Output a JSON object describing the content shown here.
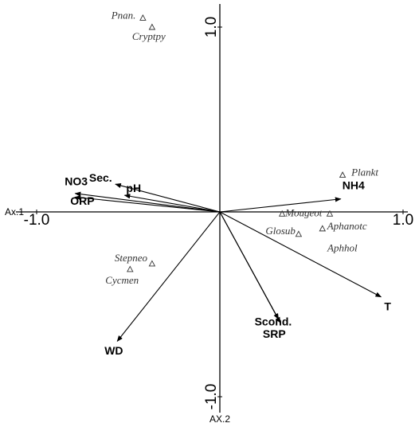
{
  "chart_data": {
    "type": "biplot",
    "x_label": "Ax.1",
    "y_label": "AX.2",
    "xlim": [
      -1.0,
      1.0
    ],
    "ylim": [
      -1.0,
      1.0
    ],
    "xticks": [
      {
        "value": -1.0,
        "label": "-1.0"
      },
      {
        "value": 1.0,
        "label": "1.0"
      }
    ],
    "yticks": [
      {
        "value": 1.0,
        "label": "1.0"
      },
      {
        "value": -1.0,
        "label": "-1.0"
      }
    ],
    "vectors": [
      {
        "name": "NO3",
        "x": -0.79,
        "y": 0.1
      },
      {
        "name": "ORP",
        "x": -0.79,
        "y": 0.08
      },
      {
        "name": "Sec.",
        "x": -0.57,
        "y": 0.15
      },
      {
        "name": "pH",
        "x": -0.52,
        "y": 0.09
      },
      {
        "name": "NH4",
        "x": 0.66,
        "y": 0.07
      },
      {
        "name": "T",
        "x": 0.88,
        "y": -0.46
      },
      {
        "name": "WD",
        "x": -0.56,
        "y": -0.7
      },
      {
        "name": "Scond.",
        "x": 0.32,
        "y": -0.58
      },
      {
        "name": "SRP",
        "x": 0.33,
        "y": -0.6
      }
    ],
    "species": [
      {
        "name": "Pnan.",
        "x": -0.42,
        "y": 1.05
      },
      {
        "name": "Cryptpy",
        "x": -0.37,
        "y": 1.0
      },
      {
        "name": "Plankt",
        "x": 0.67,
        "y": 0.2
      },
      {
        "name": "Mougeot",
        "x": 0.34,
        "y": -0.01
      },
      {
        "name": "Glosub",
        "x": 0.43,
        "y": -0.12
      },
      {
        "name": "Aphanotc",
        "x": 0.56,
        "y": -0.09
      },
      {
        "name": "Aphhol",
        "x": 0.6,
        "y": -0.01
      },
      {
        "name": "Stepneo",
        "x": -0.37,
        "y": -0.28
      },
      {
        "name": "Cycmen",
        "x": -0.49,
        "y": -0.31
      }
    ]
  }
}
